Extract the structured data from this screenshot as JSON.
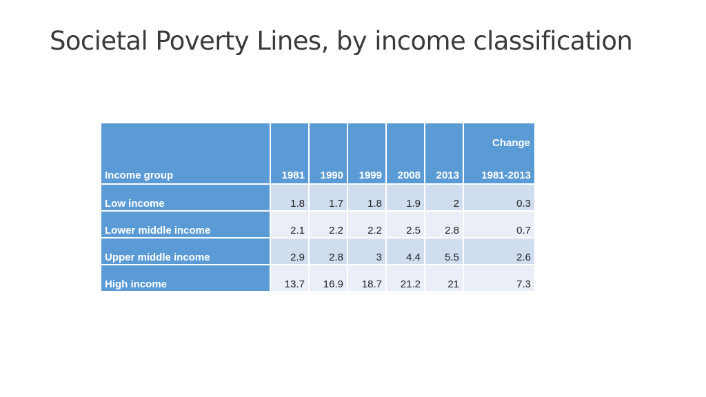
{
  "title": "Societal Poverty Lines, by income classification",
  "table": {
    "header": {
      "label": "Income group",
      "years": [
        "1981",
        "1990",
        "1999",
        "2008",
        "2013"
      ],
      "change_top": "Change",
      "change_bottom": "1981-2013"
    },
    "rows": [
      {
        "label": "Low income",
        "values": [
          "1.8",
          "1.7",
          "1.8",
          "1.9",
          "2"
        ],
        "change": "0.3"
      },
      {
        "label": "Lower middle income",
        "values": [
          "2.1",
          "2.2",
          "2.2",
          "2.5",
          "2.8"
        ],
        "change": "0.7"
      },
      {
        "label": "Upper middle income",
        "values": [
          "2.9",
          "2.8",
          "3",
          "4.4",
          "5.5"
        ],
        "change": "2.6"
      },
      {
        "label": "High income",
        "values": [
          "13.7",
          "16.9",
          "18.7",
          "21.2",
          "21"
        ],
        "change": "7.3"
      }
    ]
  },
  "colors": {
    "header_fill": "#5b9bd5",
    "cell_dark": "#d0ddef",
    "cell_light": "#e9eef7"
  }
}
